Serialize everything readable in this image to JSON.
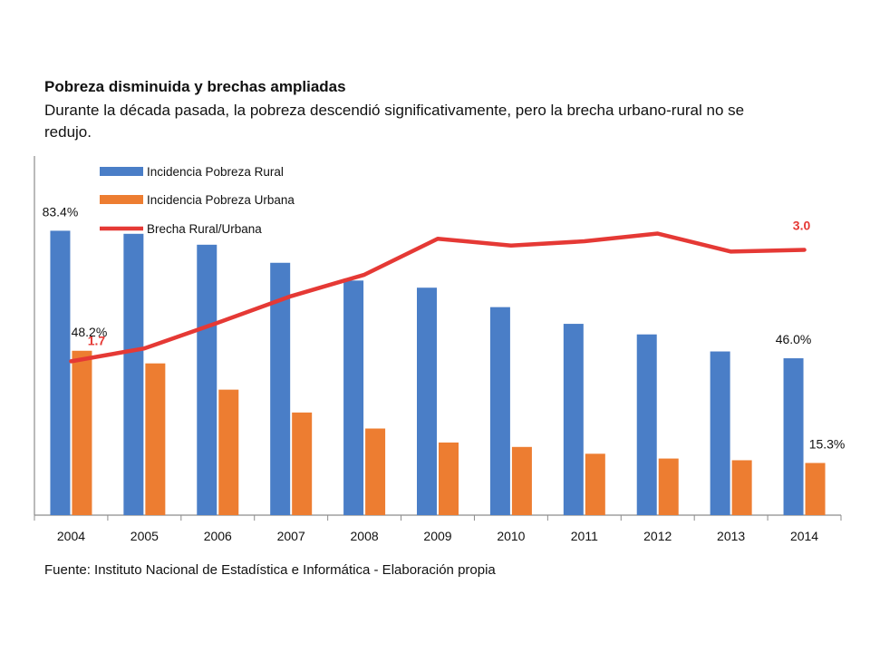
{
  "header": {
    "title": "Pobreza disminuida y brechas ampliadas",
    "subtitle": "Durante la década pasada, la pobreza descendió significativamente, pero la brecha urbano-rural no se redujo."
  },
  "footer": {
    "source": "Fuente: Instituto Nacional de Estadística e Informática - Elaboración propia"
  },
  "chart_data": {
    "type": "bar",
    "categories": [
      "2004",
      "2005",
      "2006",
      "2007",
      "2008",
      "2009",
      "2010",
      "2011",
      "2012",
      "2013",
      "2014"
    ],
    "series": [
      {
        "name": "Incidencia Pobreza Rural",
        "type": "bar",
        "color": "#4A7EC7",
        "values": [
          83.4,
          82.5,
          79.3,
          74.0,
          68.8,
          66.7,
          61.0,
          56.1,
          53.0,
          48.0,
          46.0
        ]
      },
      {
        "name": "Incidencia Pobreza Urbana",
        "type": "bar",
        "color": "#ED7D31",
        "values": [
          48.2,
          44.5,
          36.8,
          30.1,
          25.4,
          21.3,
          20.0,
          18.0,
          16.6,
          16.1,
          15.3
        ]
      },
      {
        "name": "Brecha Rural/Urbana",
        "type": "line",
        "color": "#E53935",
        "values": [
          1.7,
          1.85,
          2.15,
          2.46,
          2.71,
          3.13,
          3.05,
          3.1,
          3.19,
          2.98,
          3.0
        ]
      }
    ],
    "data_labels": {
      "rural_first": "83.4%",
      "urban_first": "48.2%",
      "rural_last": "46.0%",
      "urban_last": "15.3%",
      "gap_first": "1.7",
      "gap_last": "3.0"
    },
    "xlabel": "",
    "ylabel": "",
    "ylim": [
      0,
      100
    ],
    "gap_range": [
      0,
      3.6
    ],
    "legend_position": "top-left",
    "grid": false
  }
}
